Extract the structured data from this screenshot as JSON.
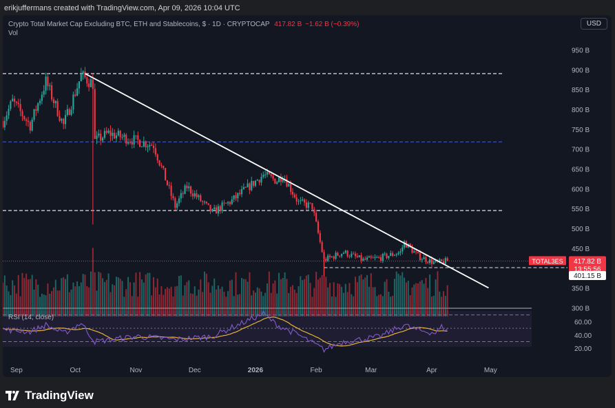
{
  "caption": "erikjuffermans created with TradingView.com, Apr 09, 2026 10:04 UTC",
  "header": {
    "title": "Crypto Total Market Cap Excluding BTC, ETH and Stablecoins, $ · 1D · CRYPTOCAP",
    "last": "417.82 B",
    "change": "−1.62 B (−0.39%)",
    "vol_label": "Vol"
  },
  "currency_button": "USD",
  "brand": "TradingView",
  "rsi_label": "RSI (14, close)",
  "price_axis_labels": [
    "950 B",
    "900 B",
    "850 B",
    "800 B",
    "750 B",
    "700 B",
    "650 B",
    "600 B",
    "550 B",
    "500 B",
    "450 B",
    "400 B",
    "350 B",
    "300 B"
  ],
  "rsi_axis_labels": [
    "60.00",
    "40.00",
    "20.00"
  ],
  "time_axis_labels": [
    "Sep",
    "Oct",
    "Nov",
    "Dec",
    "2026",
    "Feb",
    "Mar",
    "Apr",
    "May"
  ],
  "badges": {
    "symbol": "TOTAL3ES",
    "price": "417.82 B",
    "countdown": "13:55:56",
    "level": "401.15 B"
  },
  "colors": {
    "up": "#26a69a",
    "down": "#f23645",
    "background": "#131722",
    "trendline": "#ffffff",
    "level_line_blue": "#3f51b5",
    "rsi_line": "#7e57c2",
    "rsi_ma": "#e6b43c"
  },
  "chart_data": {
    "type": "candlestick",
    "title": "Crypto Total Market Cap Excluding BTC, ETH and Stablecoins",
    "ylabel": "",
    "ylim_billions": [
      278,
      975
    ],
    "x_range": [
      "2025-08-25",
      "2026-05-22"
    ],
    "anchors_billions": [
      [
        "2025-08-25",
        770
      ],
      [
        "2025-08-30",
        820
      ],
      [
        "2025-09-08",
        760
      ],
      [
        "2025-09-16",
        870
      ],
      [
        "2025-09-25",
        760
      ],
      [
        "2025-10-04",
        885
      ],
      [
        "2025-10-10",
        865
      ],
      [
        "2025-10-11",
        720
      ],
      [
        "2025-10-18",
        740
      ],
      [
        "2025-10-25",
        730
      ],
      [
        "2025-11-02",
        720
      ],
      [
        "2025-11-10",
        710
      ],
      [
        "2025-11-21",
        555
      ],
      [
        "2025-11-27",
        605
      ],
      [
        "2025-12-10",
        540
      ],
      [
        "2025-12-20",
        570
      ],
      [
        "2026-01-05",
        635
      ],
      [
        "2026-01-12",
        620
      ],
      [
        "2026-01-15",
        635
      ],
      [
        "2026-01-23",
        565
      ],
      [
        "2026-01-30",
        555
      ],
      [
        "2026-02-05",
        420
      ],
      [
        "2026-02-15",
        440
      ],
      [
        "2026-02-25",
        420
      ],
      [
        "2026-03-05",
        425
      ],
      [
        "2026-03-16",
        440
      ],
      [
        "2026-03-18",
        465
      ],
      [
        "2026-03-25",
        430
      ],
      [
        "2026-04-03",
        412
      ],
      [
        "2026-04-09",
        417.82
      ]
    ],
    "horizontal_levels_billions": {
      "dashed_white": [
        890,
        545,
        401.15
      ],
      "dashed_blue": [
        718
      ],
      "dotted_red_last": 417.82
    },
    "trendline": {
      "from": [
        "2025-10-06",
        890
      ],
      "to": [
        "2026-04-30",
        350
      ]
    },
    "rsi": {
      "period": 14,
      "levels": [
        70,
        50,
        30
      ],
      "ylim": [
        14,
        78
      ],
      "anchors": [
        [
          "2025-08-25",
          48
        ],
        [
          "2025-09-08",
          45
        ],
        [
          "2025-09-16",
          55
        ],
        [
          "2025-09-25",
          42
        ],
        [
          "2025-10-04",
          58
        ],
        [
          "2025-10-11",
          30
        ],
        [
          "2025-11-02",
          38
        ],
        [
          "2025-11-21",
          33
        ],
        [
          "2025-12-10",
          38
        ],
        [
          "2026-01-05",
          72
        ],
        [
          "2026-01-12",
          55
        ],
        [
          "2026-01-23",
          40
        ],
        [
          "2026-02-05",
          18
        ],
        [
          "2026-02-15",
          30
        ],
        [
          "2026-03-05",
          37
        ],
        [
          "2026-03-18",
          55
        ],
        [
          "2026-03-25",
          47
        ],
        [
          "2026-04-03",
          43
        ],
        [
          "2026-04-06",
          52
        ],
        [
          "2026-04-09",
          47
        ]
      ]
    }
  }
}
